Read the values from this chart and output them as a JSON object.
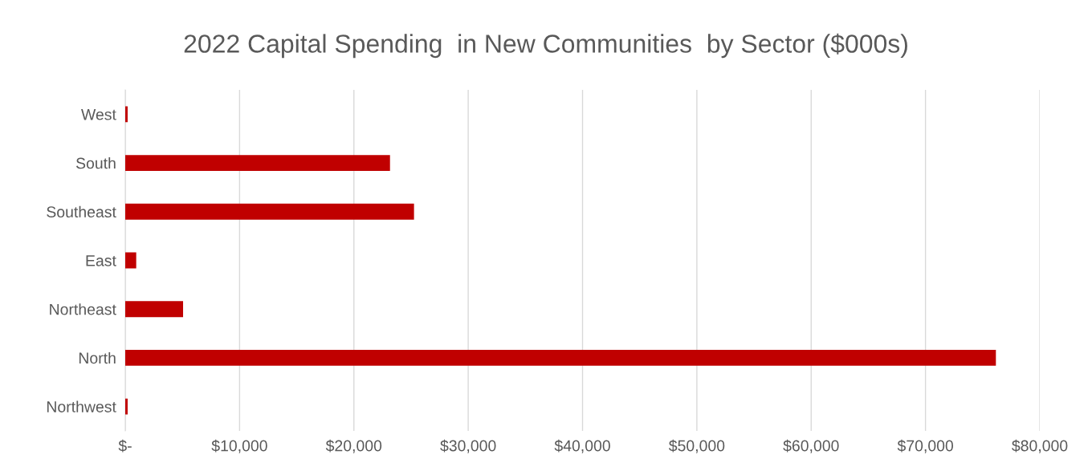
{
  "chart_data": {
    "type": "bar",
    "orientation": "horizontal",
    "title": "2022 Capital Spending  in New Communities  by Sector ($000s)",
    "categories": [
      "West",
      "South",
      "Southeast",
      "East",
      "Northeast",
      "North",
      "Northwest"
    ],
    "values": [
      150,
      23100,
      25200,
      900,
      5000,
      76100,
      150
    ],
    "color": "#c00000",
    "xlim": [
      0,
      80000
    ],
    "xticks": [
      {
        "value": 0,
        "label": "$-"
      },
      {
        "value": 10000,
        "label": "$10,000"
      },
      {
        "value": 20000,
        "label": "$20,000"
      },
      {
        "value": 30000,
        "label": "$30,000"
      },
      {
        "value": 40000,
        "label": "$40,000"
      },
      {
        "value": 50000,
        "label": "$50,000"
      },
      {
        "value": 60000,
        "label": "$60,000"
      },
      {
        "value": 70000,
        "label": "$70,000"
      },
      {
        "value": 80000,
        "label": "$80,000"
      }
    ],
    "grid": "x"
  }
}
